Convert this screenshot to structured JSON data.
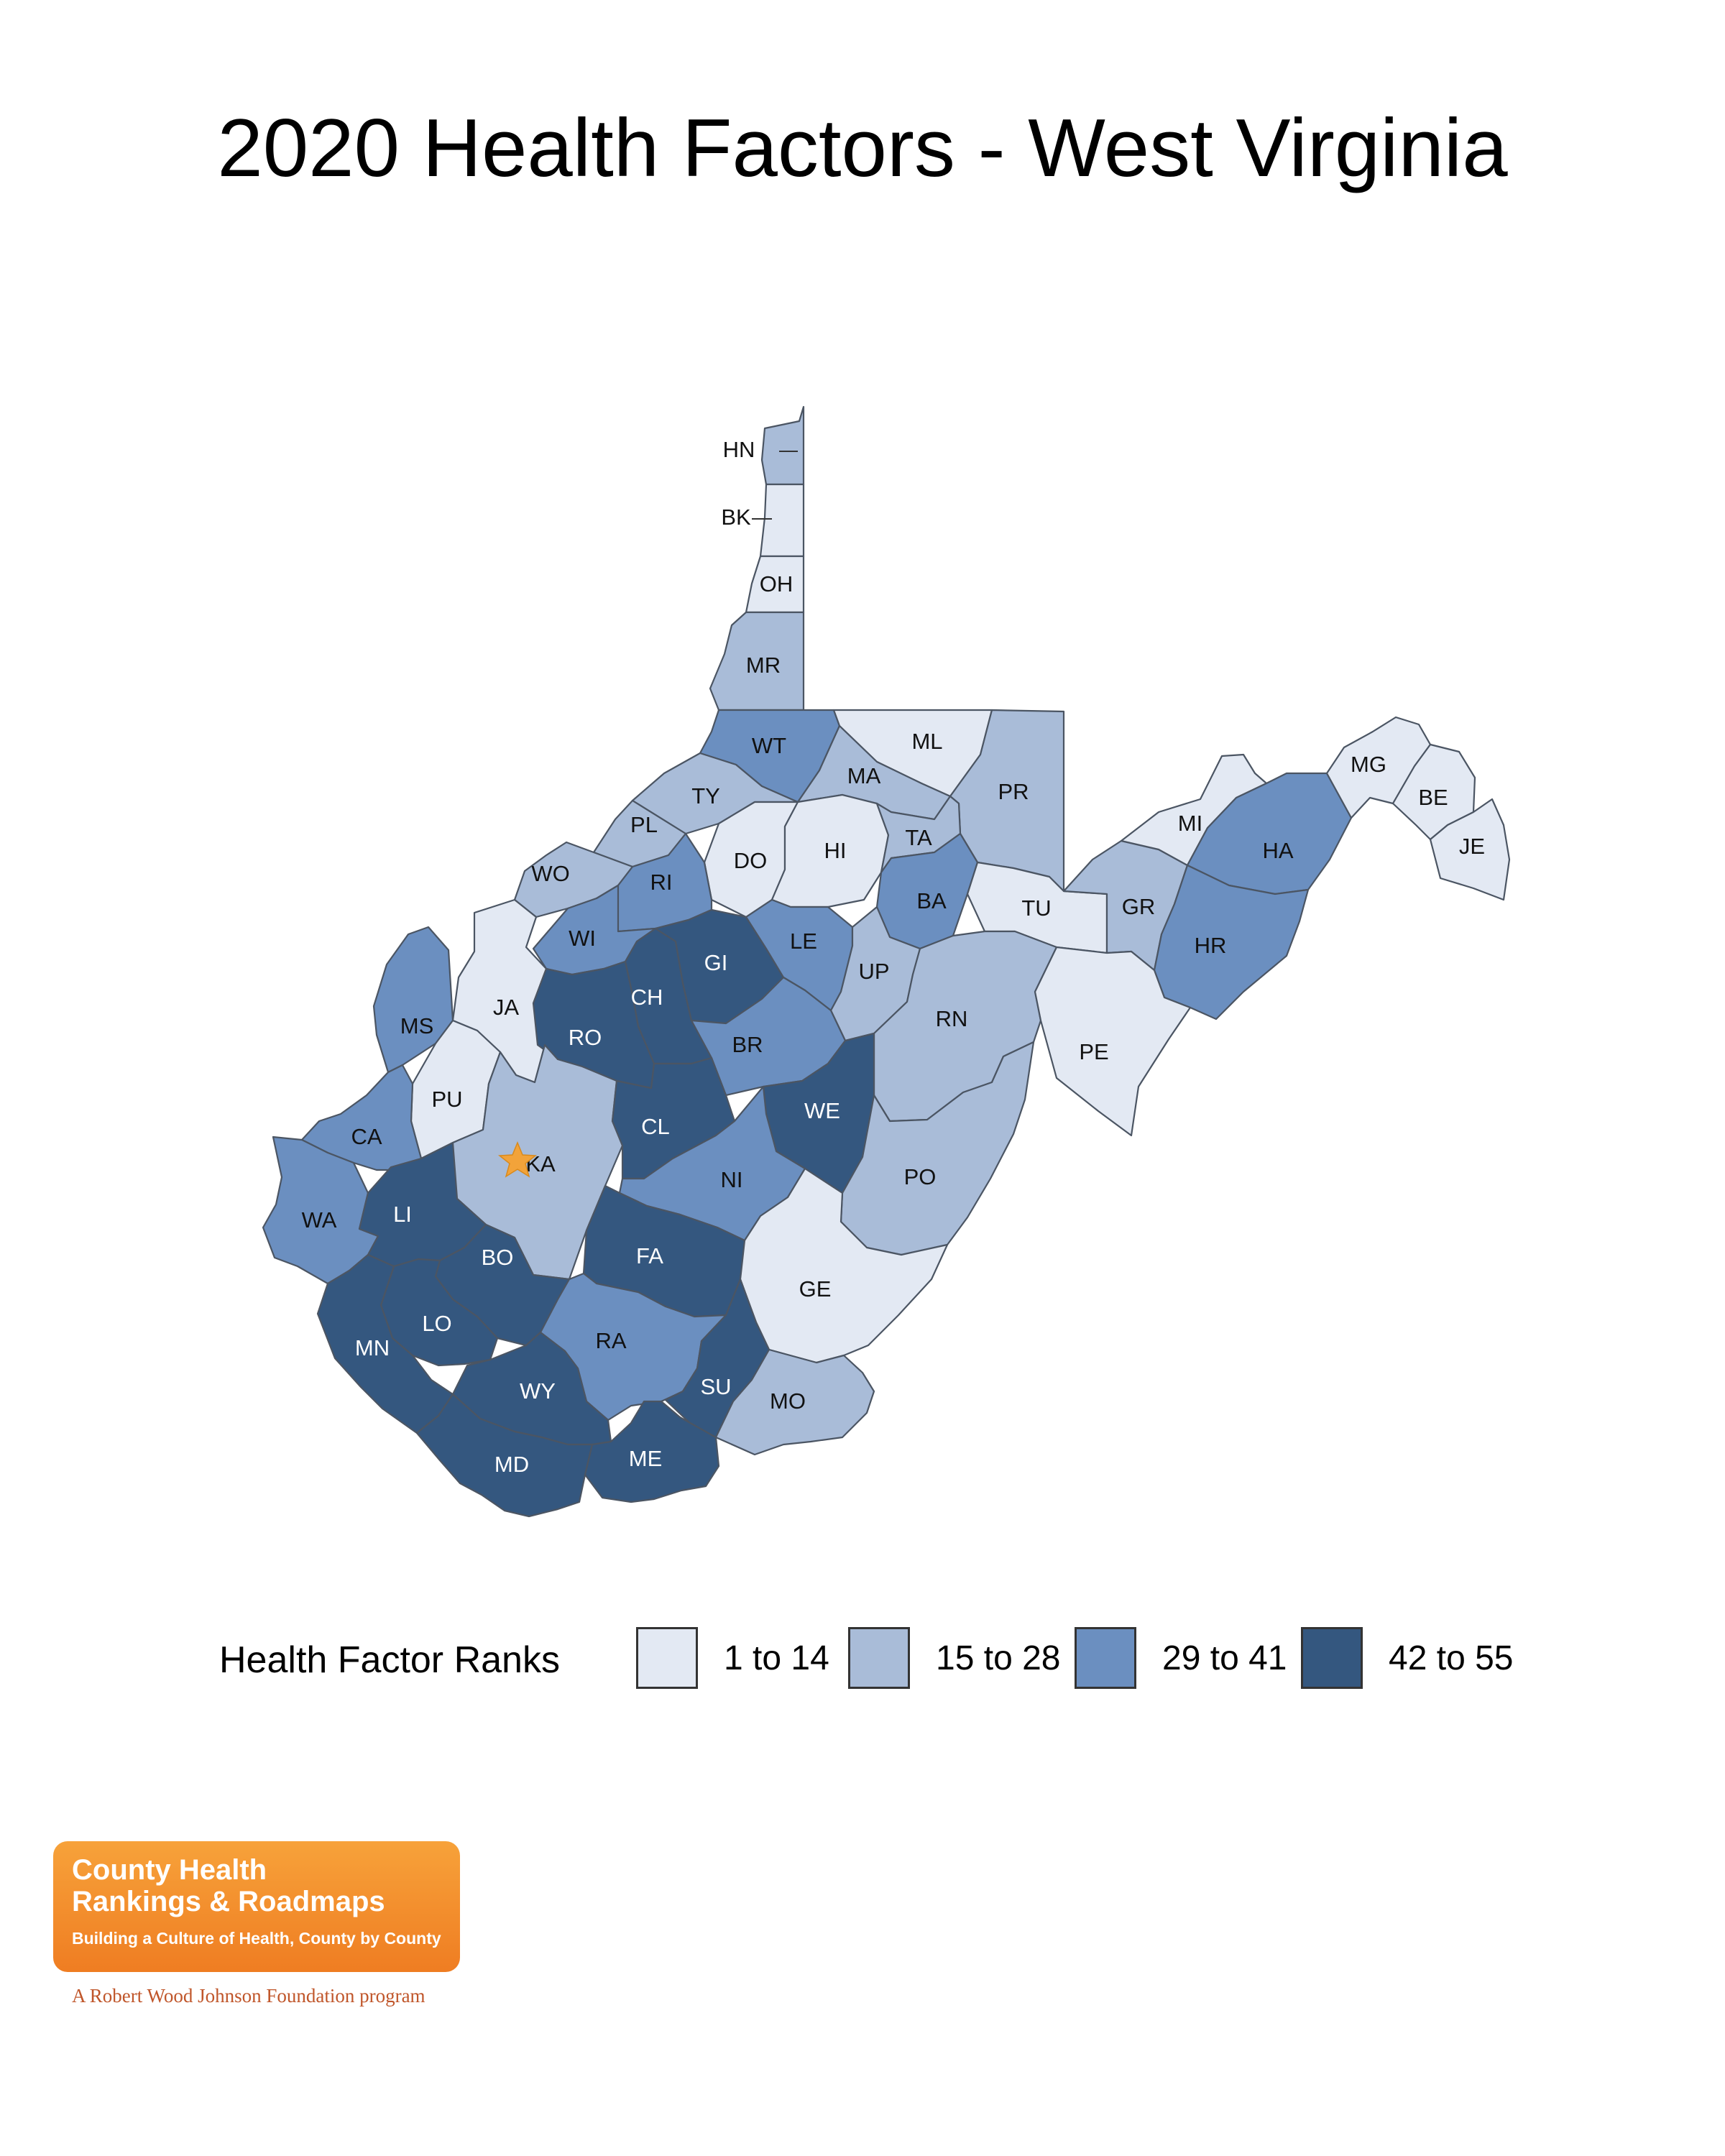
{
  "title": "2020 Health Factors - West Virginia",
  "legend": {
    "title": "Health Factor Ranks",
    "items": [
      {
        "label": "1 to 14",
        "color": "#e3e9f3"
      },
      {
        "label": "15 to 28",
        "color": "#a9bcd8"
      },
      {
        "label": "29 to 41",
        "color": "#6b8fc0"
      },
      {
        "label": "42 to 55",
        "color": "#34577f"
      }
    ]
  },
  "counties": [
    {
      "abbr": "HN",
      "bin": 1
    },
    {
      "abbr": "BK",
      "bin": 0
    },
    {
      "abbr": "OH",
      "bin": 0
    },
    {
      "abbr": "MR",
      "bin": 1
    },
    {
      "abbr": "WT",
      "bin": 2
    },
    {
      "abbr": "ML",
      "bin": 0
    },
    {
      "abbr": "MA",
      "bin": 1
    },
    {
      "abbr": "PR",
      "bin": 1
    },
    {
      "abbr": "TY",
      "bin": 1
    },
    {
      "abbr": "PL",
      "bin": 1
    },
    {
      "abbr": "WO",
      "bin": 1
    },
    {
      "abbr": "DO",
      "bin": 0
    },
    {
      "abbr": "HI",
      "bin": 0
    },
    {
      "abbr": "TA",
      "bin": 1
    },
    {
      "abbr": "RI",
      "bin": 2
    },
    {
      "abbr": "BA",
      "bin": 2
    },
    {
      "abbr": "TU",
      "bin": 0
    },
    {
      "abbr": "GR",
      "bin": 1
    },
    {
      "abbr": "MI",
      "bin": 0
    },
    {
      "abbr": "HA",
      "bin": 2
    },
    {
      "abbr": "MG",
      "bin": 0
    },
    {
      "abbr": "BE",
      "bin": 0
    },
    {
      "abbr": "JE",
      "bin": 0
    },
    {
      "abbr": "WI",
      "bin": 2
    },
    {
      "abbr": "JA",
      "bin": 0
    },
    {
      "abbr": "RO",
      "bin": 3
    },
    {
      "abbr": "CH",
      "bin": 3
    },
    {
      "abbr": "GI",
      "bin": 3
    },
    {
      "abbr": "LE",
      "bin": 2
    },
    {
      "abbr": "UP",
      "bin": 1
    },
    {
      "abbr": "RN",
      "bin": 1
    },
    {
      "abbr": "HR",
      "bin": 2
    },
    {
      "abbr": "MS",
      "bin": 2
    },
    {
      "abbr": "PU",
      "bin": 0
    },
    {
      "abbr": "BR",
      "bin": 2
    },
    {
      "abbr": "WE",
      "bin": 3
    },
    {
      "abbr": "PE",
      "bin": 0
    },
    {
      "abbr": "CA",
      "bin": 2
    },
    {
      "abbr": "KA",
      "bin": 1
    },
    {
      "abbr": "CL",
      "bin": 3
    },
    {
      "abbr": "NI",
      "bin": 2
    },
    {
      "abbr": "PO",
      "bin": 1
    },
    {
      "abbr": "WA",
      "bin": 2
    },
    {
      "abbr": "LI",
      "bin": 3
    },
    {
      "abbr": "BO",
      "bin": 3
    },
    {
      "abbr": "FA",
      "bin": 3
    },
    {
      "abbr": "GE",
      "bin": 0
    },
    {
      "abbr": "LO",
      "bin": 3
    },
    {
      "abbr": "MN",
      "bin": 3
    },
    {
      "abbr": "RA",
      "bin": 2
    },
    {
      "abbr": "WY",
      "bin": 3
    },
    {
      "abbr": "SU",
      "bin": 3
    },
    {
      "abbr": "MO",
      "bin": 1
    },
    {
      "abbr": "MD",
      "bin": 3
    },
    {
      "abbr": "ME",
      "bin": 3
    }
  ],
  "capital_marker": {
    "county": "KA",
    "color": "#f2a33a"
  },
  "logo": {
    "line1": "County Health",
    "line2": "Rankings & Roadmaps",
    "tagline": "Building a Culture of Health, County by County",
    "foundation": "A Robert Wood Johnson Foundation program"
  }
}
